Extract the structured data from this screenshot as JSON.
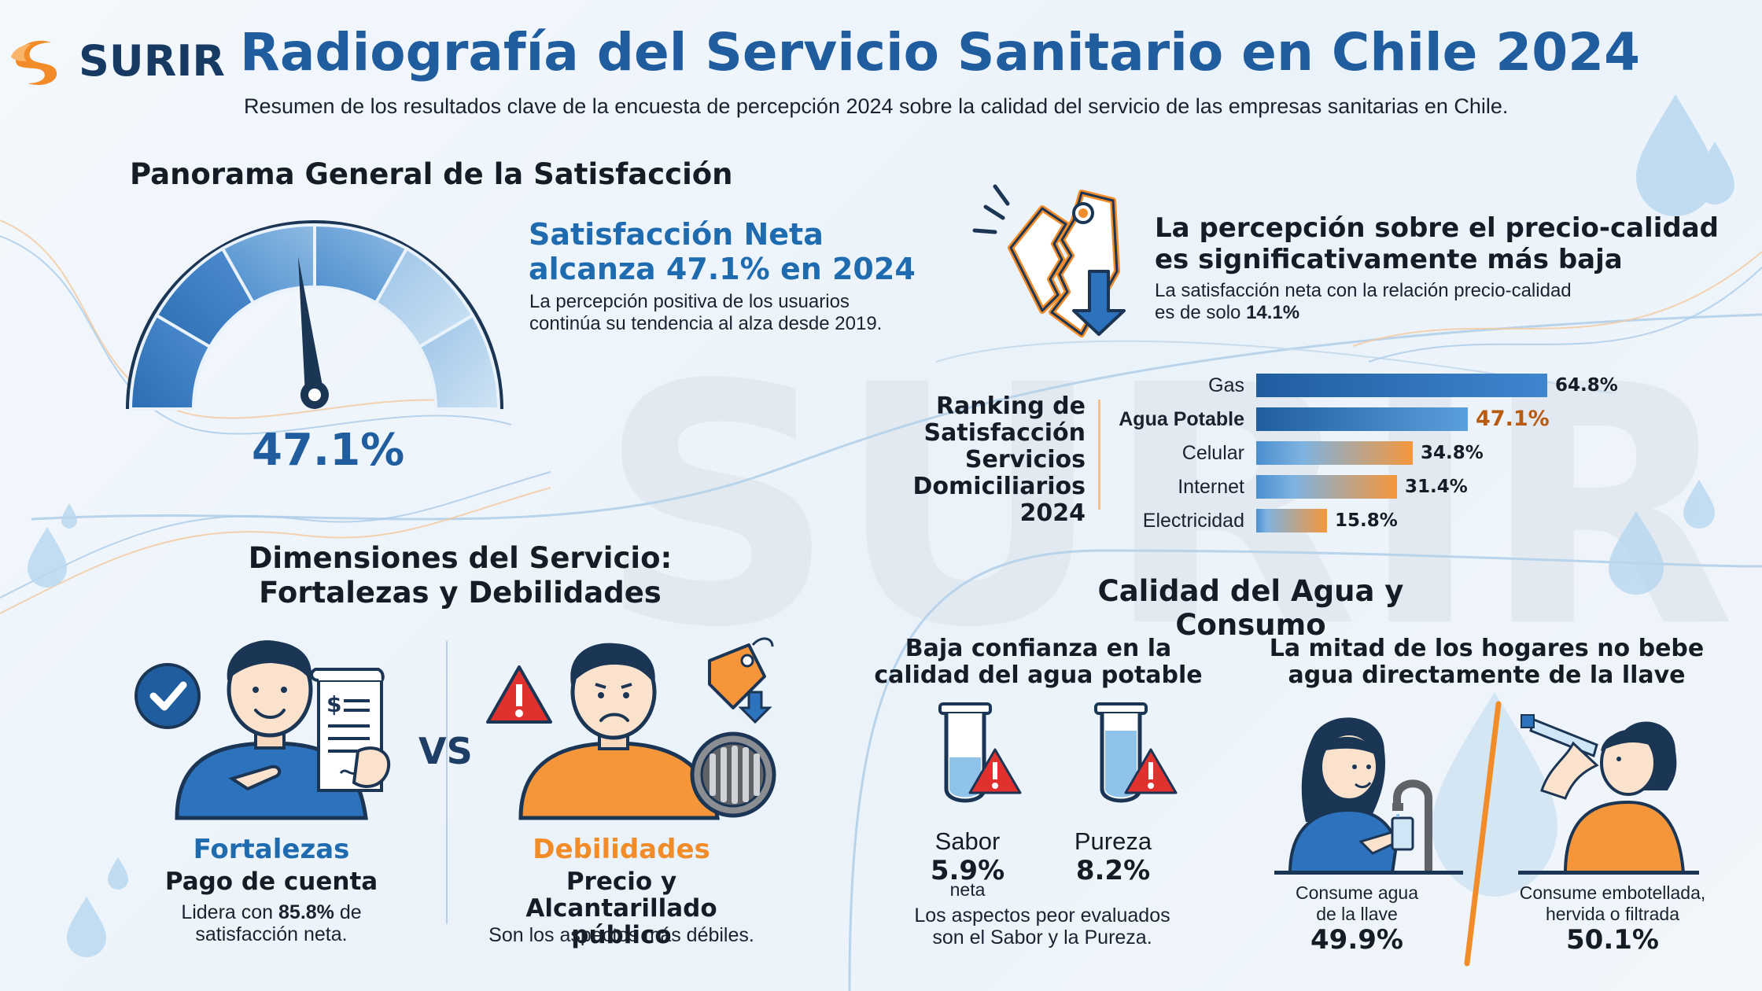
{
  "header": {
    "logo_text": "SURIR",
    "title": "Radiografía del Servicio Sanitario en Chile 2024",
    "subtitle": "Resumen de los resultados clave de la encuesta de percepción 2024 sobre la calidad del servicio de las empresas sanitarias en Chile."
  },
  "satisfaction": {
    "section_title": "Panorama General de la Satisfacción",
    "gauge_value": "47.1%",
    "gauge_fraction": 0.471,
    "headline_line1": "Satisfacción Neta",
    "headline_line2": "alcanza 47.1% en 2024",
    "desc_line1": "La percepción positiva de los usuarios",
    "desc_line2": "continúa su tendencia al alza desde 2019."
  },
  "price_quality": {
    "head_line1": "La percepción sobre el precio-calidad",
    "head_line2": "es significativamente más baja",
    "desc_line1": "La satisfacción neta con la relación precio-calidad",
    "desc_prefix": "es de solo ",
    "desc_value": "14.1%"
  },
  "ranking": {
    "title_line1": "Ranking de",
    "title_line2": "Satisfacción",
    "title_line3": "Servicios Domiciliarios",
    "title_line4": "2024",
    "items": [
      {
        "label": "Gas",
        "value": 64.8,
        "display": "64.8%"
      },
      {
        "label": "Agua Potable",
        "value": 47.1,
        "display": "47.1%"
      },
      {
        "label": "Celular",
        "value": 34.8,
        "display": "34.8%"
      },
      {
        "label": "Internet",
        "value": 31.4,
        "display": "31.4%"
      },
      {
        "label": "Electricidad",
        "value": 15.8,
        "display": "15.8%"
      }
    ]
  },
  "dimensions": {
    "title_line1": "Dimensiones del Servicio:",
    "title_line2": "Fortalezas y Debilidades",
    "vs": "VS",
    "strengths": {
      "label": "Fortalezas",
      "item": "Pago de cuenta",
      "desc_prefix": "Lidera con ",
      "desc_value": "85.8%",
      "desc_suffix": " de",
      "desc_line2": "satisfacción neta."
    },
    "weaknesses": {
      "label": "Debilidades",
      "item_line1": "Precio y Alcantarillado",
      "item_line2": "público",
      "desc": "Son los aspectos más débiles."
    }
  },
  "water": {
    "section_title": "Calidad del Agua y Consumo",
    "trust_head_line1": "Baja confianza en la",
    "trust_head_line2": "calidad del agua potable",
    "sabor_label": "Sabor",
    "sabor_value": "5.9%",
    "sabor_unit": "neta",
    "pureza_label": "Pureza",
    "pureza_value": "8.2%",
    "trust_desc_line1": "Los aspectos peor evaluados",
    "trust_desc_line2": "son el Sabor y la Pureza.",
    "consume_head_line1": "La mitad de los hogares no bebe",
    "consume_head_line2": "agua directamente de la llave",
    "tap_line1": "Consume agua",
    "tap_line2": "de la llave",
    "tap_value": "49.9%",
    "bottled_line1": "Consume embotellada,",
    "bottled_line2": "hervida o filtrada",
    "bottled_value": "50.1%"
  },
  "colors": {
    "primary_blue": "#1f5d9f",
    "accent_orange": "#f28c28",
    "dark_navy": "#173a63"
  }
}
